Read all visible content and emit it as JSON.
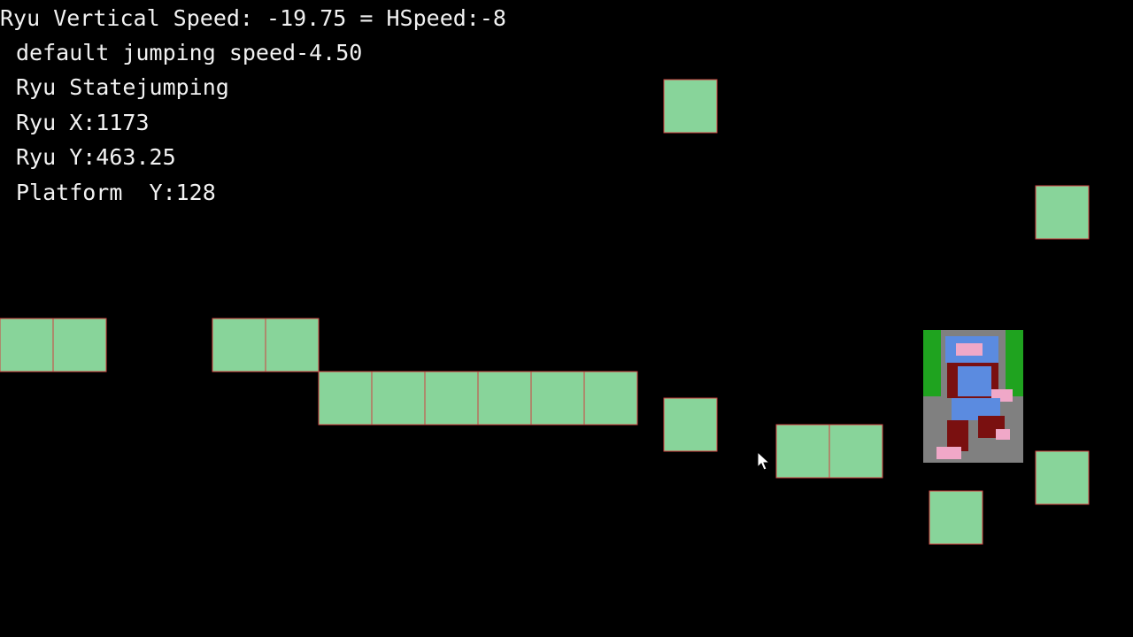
{
  "debug": {
    "lines": [
      "Ryu Vertical Speed: -19.75 = HSpeed:-8",
      "default jumping speed-4.50",
      "Ryu Statejumping",
      "Ryu X:1173",
      "Ryu Y:463.25",
      "Platform  Y:128"
    ]
  }
}
